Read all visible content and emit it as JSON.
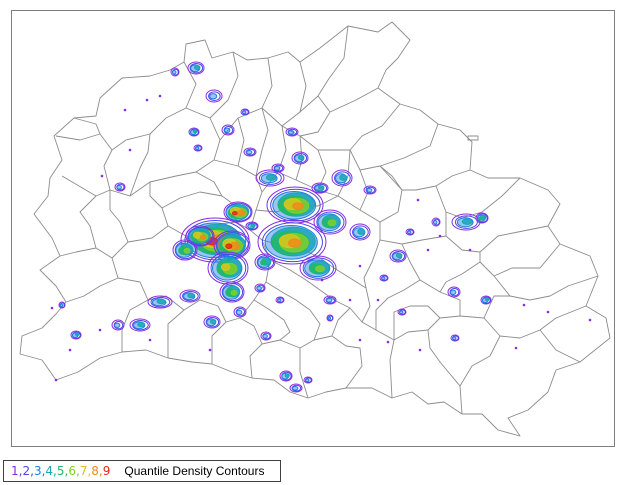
{
  "legend": {
    "title": "Quantile Density Contours",
    "levels": [
      {
        "label": "1",
        "color": "#8a2be2"
      },
      {
        "label": "2",
        "color": "#4b46e8"
      },
      {
        "label": "3",
        "color": "#1f7de0"
      },
      {
        "label": "4",
        "color": "#1aa6b8"
      },
      {
        "label": "5",
        "color": "#21b86a"
      },
      {
        "label": "6",
        "color": "#7fcf2a"
      },
      {
        "label": "7",
        "color": "#d6c61d"
      },
      {
        "label": "8",
        "color": "#f08a1a"
      },
      {
        "label": "9",
        "color": "#e3261c"
      }
    ]
  },
  "colors": {
    "district_stroke": "#8c8c8c",
    "frame": "#7f7f7f",
    "outer_contour": "#b026ff"
  }
}
